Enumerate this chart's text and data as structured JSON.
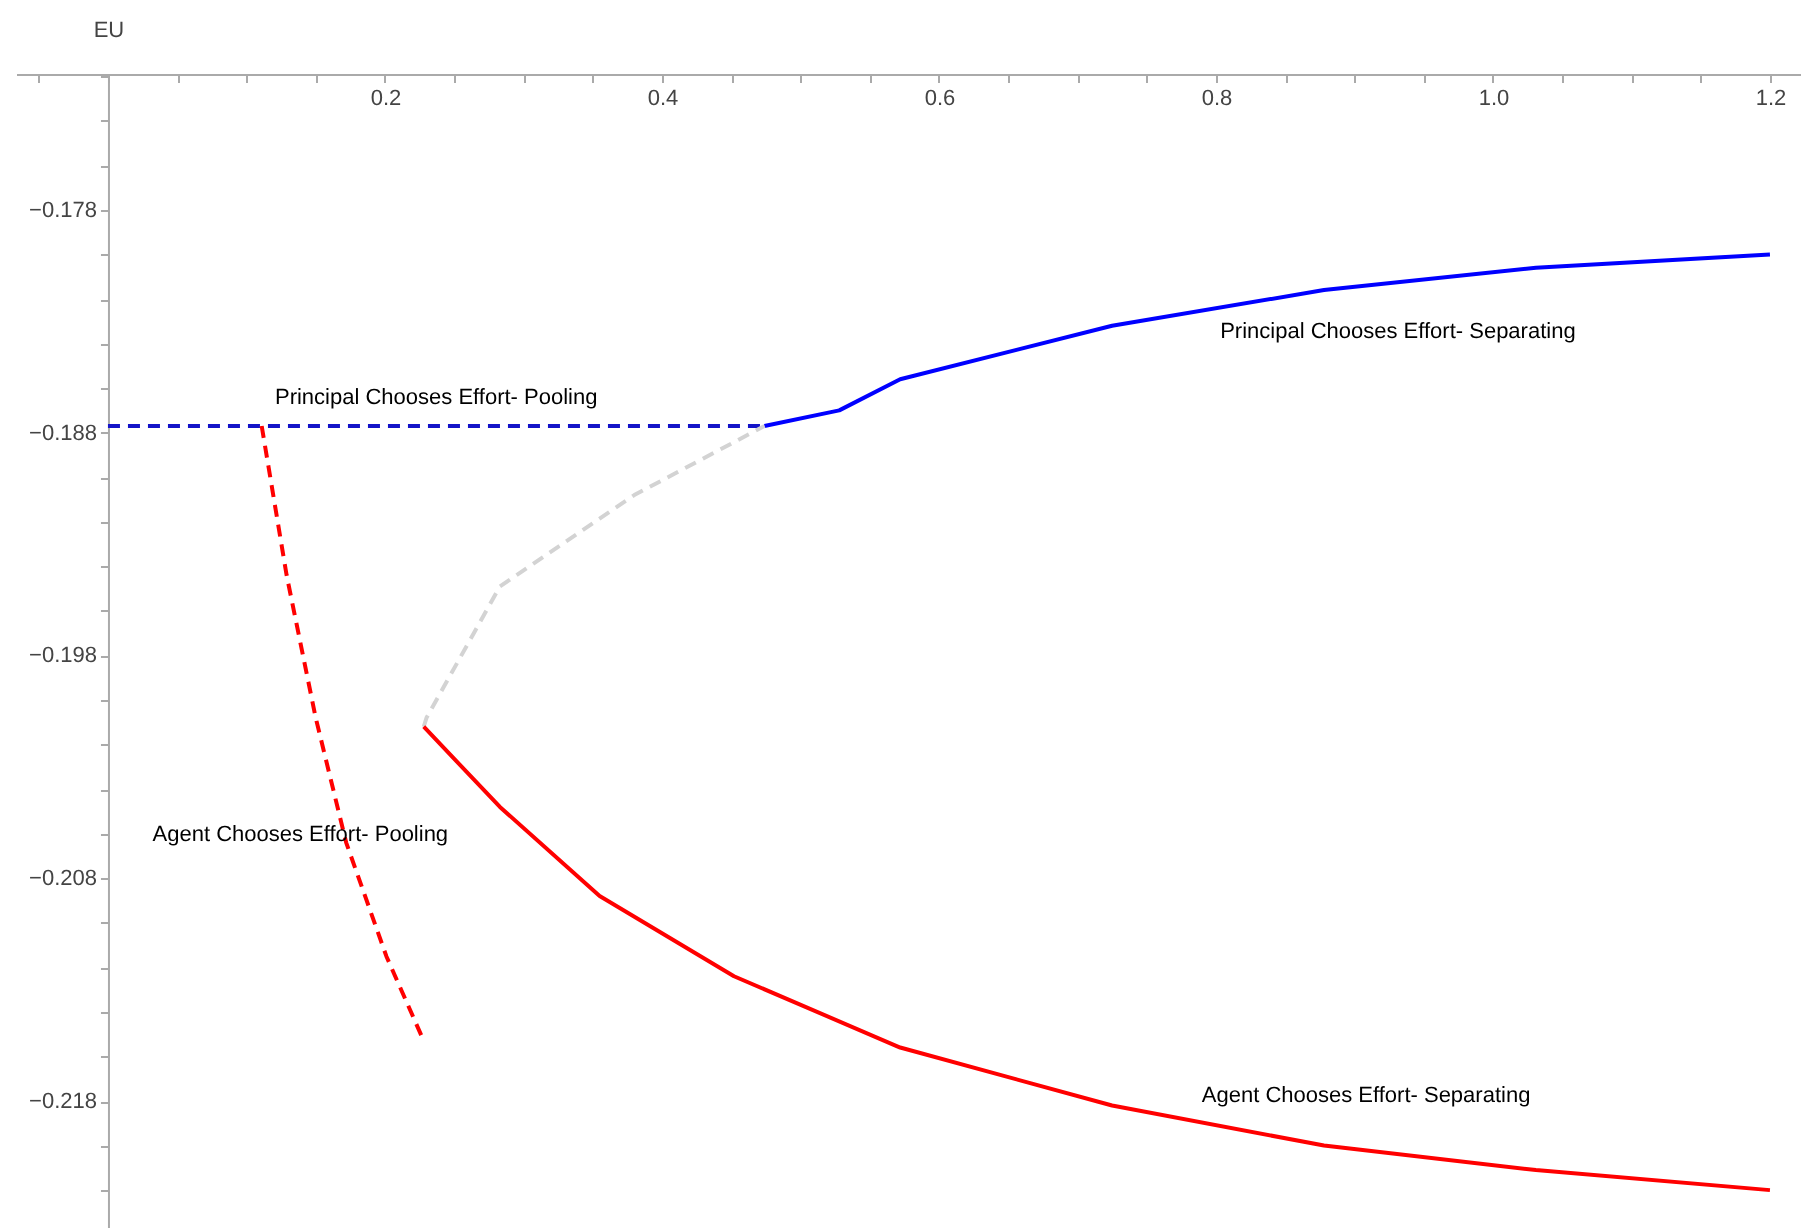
{
  "chart_data": {
    "type": "line",
    "ylabel": "EU",
    "xlim": [
      -0.0664,
      1.2217
    ],
    "ylim": [
      -0.2237,
      -0.1719
    ],
    "xticks": [
      {
        "value": -0.05,
        "label": null
      },
      {
        "value": 0,
        "label": null
      },
      {
        "value": 0.05,
        "label": null
      },
      {
        "value": 0.1,
        "label": null
      },
      {
        "value": 0.15,
        "label": null
      },
      0.2,
      {
        "value": 0.25,
        "label": null
      },
      {
        "value": 0.3,
        "label": null
      },
      {
        "value": 0.35,
        "label": null
      },
      0.4,
      {
        "value": 0.45,
        "label": null
      },
      {
        "value": 0.5,
        "label": null
      },
      {
        "value": 0.55,
        "label": null
      },
      0.6,
      {
        "value": 0.65,
        "label": null
      },
      {
        "value": 0.7,
        "label": null
      },
      {
        "value": 0.75,
        "label": null
      },
      0.8,
      {
        "value": 0.85,
        "label": null
      },
      {
        "value": 0.9,
        "label": null
      },
      {
        "value": 0.95,
        "label": null
      },
      {
        "value": 1.0,
        "label": "1.0"
      },
      {
        "value": 1.05,
        "label": null
      },
      {
        "value": 1.1,
        "label": null
      },
      {
        "value": 1.15,
        "label": null
      },
      1.2
    ],
    "yticks": [
      {
        "value": -0.172,
        "label": null
      },
      {
        "value": -0.174,
        "label": null
      },
      {
        "value": -0.176,
        "label": null
      },
      {
        "value": -0.178,
        "label": "−0.178"
      },
      {
        "value": -0.18,
        "label": null
      },
      {
        "value": -0.182,
        "label": null
      },
      {
        "value": -0.184,
        "label": null
      },
      {
        "value": -0.186,
        "label": null
      },
      {
        "value": -0.188,
        "label": "−0.188"
      },
      {
        "value": -0.19,
        "label": null
      },
      {
        "value": -0.192,
        "label": null
      },
      {
        "value": -0.194,
        "label": null
      },
      {
        "value": -0.196,
        "label": null
      },
      {
        "value": -0.198,
        "label": "−0.198"
      },
      {
        "value": -0.2,
        "label": null
      },
      {
        "value": -0.202,
        "label": null
      },
      {
        "value": -0.204,
        "label": null
      },
      {
        "value": -0.206,
        "label": null
      },
      {
        "value": -0.208,
        "label": "−0.208"
      },
      {
        "value": -0.21,
        "label": null
      },
      {
        "value": -0.212,
        "label": null
      },
      {
        "value": -0.214,
        "label": null
      },
      {
        "value": -0.216,
        "label": null
      },
      {
        "value": -0.218,
        "label": "−0.218"
      },
      {
        "value": -0.22,
        "label": null
      },
      {
        "value": -0.222,
        "label": null
      }
    ],
    "grid": false,
    "marker": "none",
    "series": [
      {
        "name": "Principal Chooses Effort- Pooling",
        "color": "#1414c8",
        "line_style": "dashed",
        "x": [
          0,
          0.474
        ],
        "values": [
          -0.1877,
          -0.1877
        ]
      },
      {
        "name": "Principal Chooses Effort- Separating",
        "color": "#0000ff",
        "line_style": "solid",
        "x": [
          0.474,
          0.528,
          0.572,
          0.725,
          0.878,
          1.031,
          1.2
        ],
        "values": [
          -0.1877,
          -0.187,
          -0.1856,
          -0.1832,
          -0.1816,
          -0.1806,
          -0.18
        ]
      },
      {
        "color": "#d3d3d3",
        "line_style": "dashed",
        "x": [
          0.228,
          0.23,
          0.283,
          0.38,
          0.474
        ],
        "values": [
          -0.2012,
          -0.2008,
          -0.1949,
          -0.1908,
          -0.1877
        ]
      },
      {
        "name": "Agent Chooses Effort- Separating",
        "color": "#ff0000",
        "line_style": "solid",
        "x": [
          0.228,
          0.283,
          0.355,
          0.452,
          0.572,
          0.725,
          0.878,
          1.031,
          1.2
        ],
        "values": [
          -0.2012,
          -0.2048,
          -0.2088,
          -0.2124,
          -0.2156,
          -0.2182,
          -0.22,
          -0.2211,
          -0.222
        ]
      },
      {
        "name": "Agent Chooses Effort- Pooling",
        "color": "#ff0000",
        "line_style": "dashed",
        "x": [
          0.111,
          0.129,
          0.15,
          0.172,
          0.201,
          0.228
        ],
        "values": [
          -0.1877,
          -0.1944,
          -0.2008,
          -0.2064,
          -0.2115,
          -0.2153
        ]
      }
    ]
  }
}
